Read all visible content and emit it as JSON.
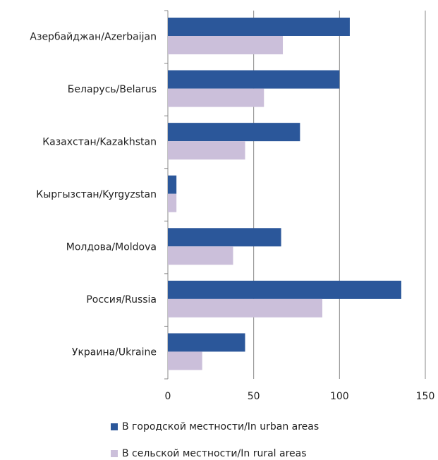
{
  "chart_data": {
    "type": "hbar",
    "categories": [
      "Азербайджан/Azerbaijan",
      "Беларусь/Belarus",
      "Казахстан/Kazakhstan",
      "Кыргызстан/Kyrgyzstan",
      "Молдова/Moldova",
      "Россия/Russia",
      "Украина/Ukraine"
    ],
    "series": [
      {
        "name": "В городской местности/In urban areas",
        "color": "#2b579a",
        "values": [
          106,
          100,
          77,
          5,
          66,
          136,
          45
        ]
      },
      {
        "name": "В сельской местности/In rural areas",
        "color": "#cbbfda",
        "values": [
          67,
          56,
          45,
          5,
          38,
          90,
          20
        ]
      }
    ],
    "xlim": [
      0,
      150
    ],
    "xticks": [
      0,
      50,
      100,
      150
    ],
    "grid": true
  }
}
